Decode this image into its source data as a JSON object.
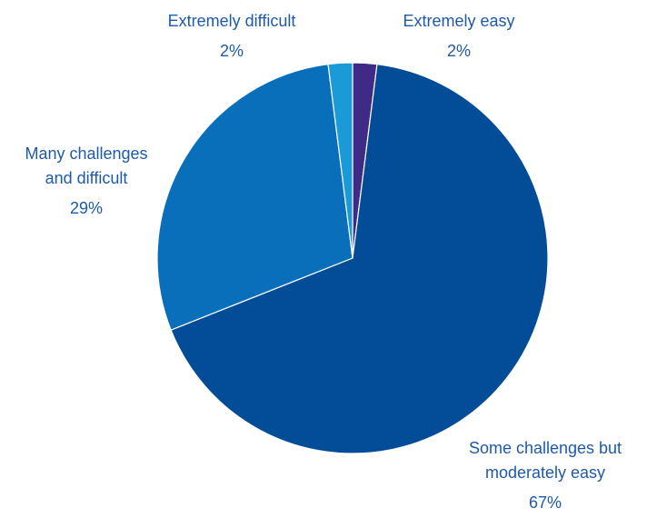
{
  "chart_data": {
    "type": "pie",
    "title": "",
    "slices": [
      {
        "label": "Extremely easy",
        "label_lines": [
          "Extremely easy"
        ],
        "value": 2,
        "value_label": "2%",
        "color": "#3f2b87"
      },
      {
        "label": "Some challenges but moderately easy",
        "label_lines": [
          "Some challenges but",
          "moderately easy"
        ],
        "value": 67,
        "value_label": "67%",
        "color": "#024c98"
      },
      {
        "label": "Many challenges and difficult",
        "label_lines": [
          "Many challenges",
          "and difficult"
        ],
        "value": 29,
        "value_label": "29%",
        "color": "#0a6fbb"
      },
      {
        "label": "Extremely difficult",
        "label_lines": [
          "Extremely difficult"
        ],
        "value": 2,
        "value_label": "2%",
        "color": "#1a9ad6"
      }
    ],
    "start_angle": "12 o'clock",
    "direction": "clockwise",
    "legend": "none",
    "label_color": "#1f5aa8"
  }
}
